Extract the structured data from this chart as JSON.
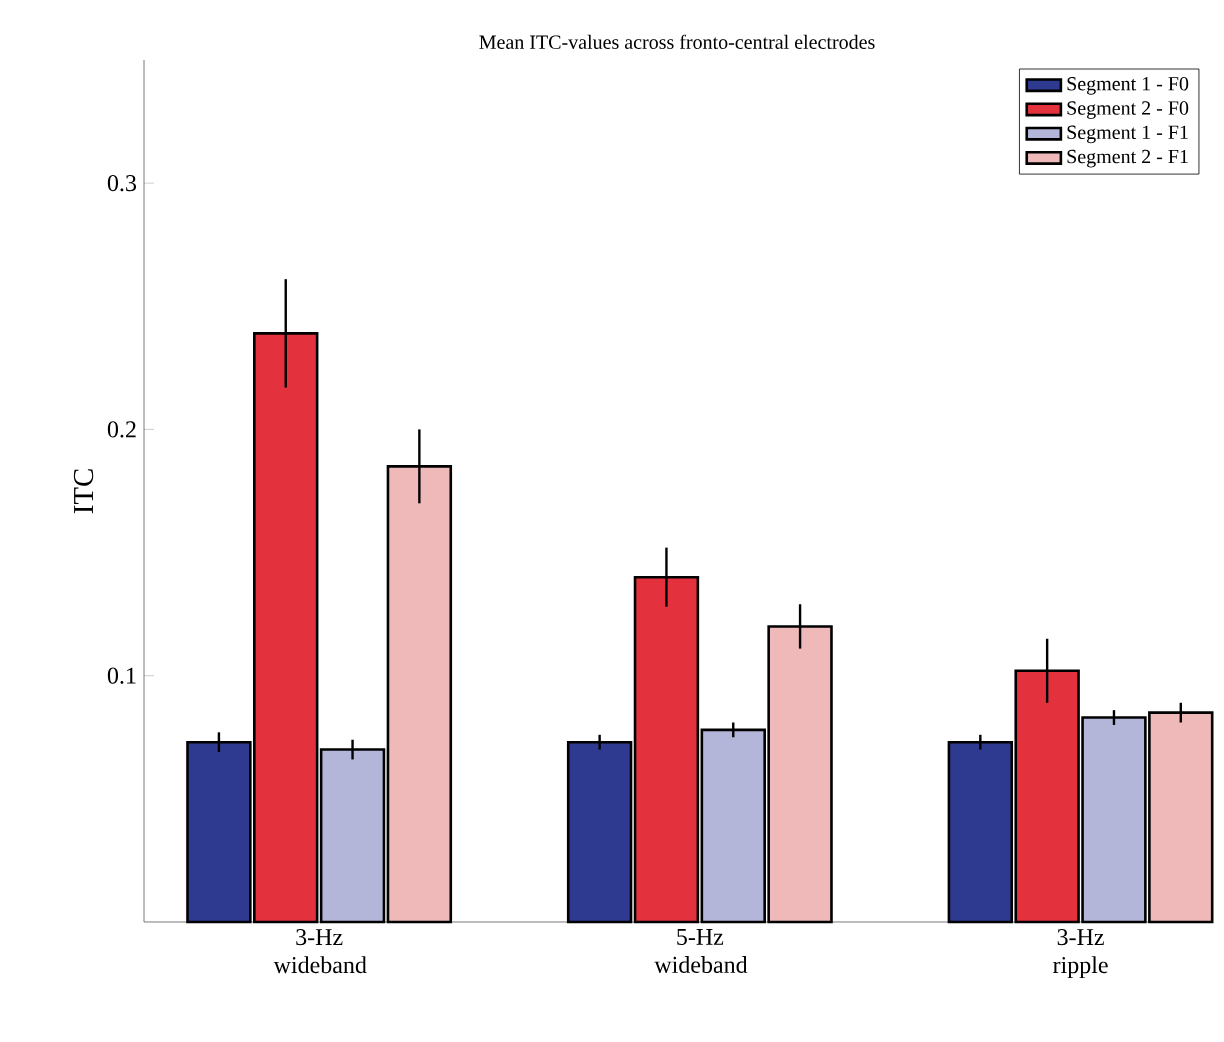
{
  "chart_data": {
    "type": "bar",
    "title": "Mean ITC-values across fronto-central electrodes",
    "ylabel": "ITC",
    "categories": [
      "3-Hz wideband",
      "5-Hz wideband",
      "3-Hz ripple"
    ],
    "series": [
      {
        "name": "Segment 1 - F0",
        "color": "#2e3a8f",
        "values": [
          0.073,
          0.073,
          0.073
        ],
        "errors": [
          0.004,
          0.003,
          0.003
        ]
      },
      {
        "name": "Segment 2 - F0",
        "color": "#e3323d",
        "values": [
          0.239,
          0.14,
          0.102
        ],
        "errors": [
          0.022,
          0.012,
          0.013
        ]
      },
      {
        "name": "Segment 1 - F1",
        "color": "#b3b5d9",
        "values": [
          0.07,
          0.078,
          0.083
        ],
        "errors": [
          0.004,
          0.003,
          0.003
        ]
      },
      {
        "name": "Segment 2 - F1",
        "color": "#efb8b9",
        "values": [
          0.185,
          0.12,
          0.085
        ],
        "errors": [
          0.015,
          0.009,
          0.004
        ]
      }
    ],
    "ylim": [
      0,
      0.35
    ],
    "yticks": [
      0.1,
      0.2,
      0.3
    ],
    "legend": "top right",
    "grid": false
  }
}
